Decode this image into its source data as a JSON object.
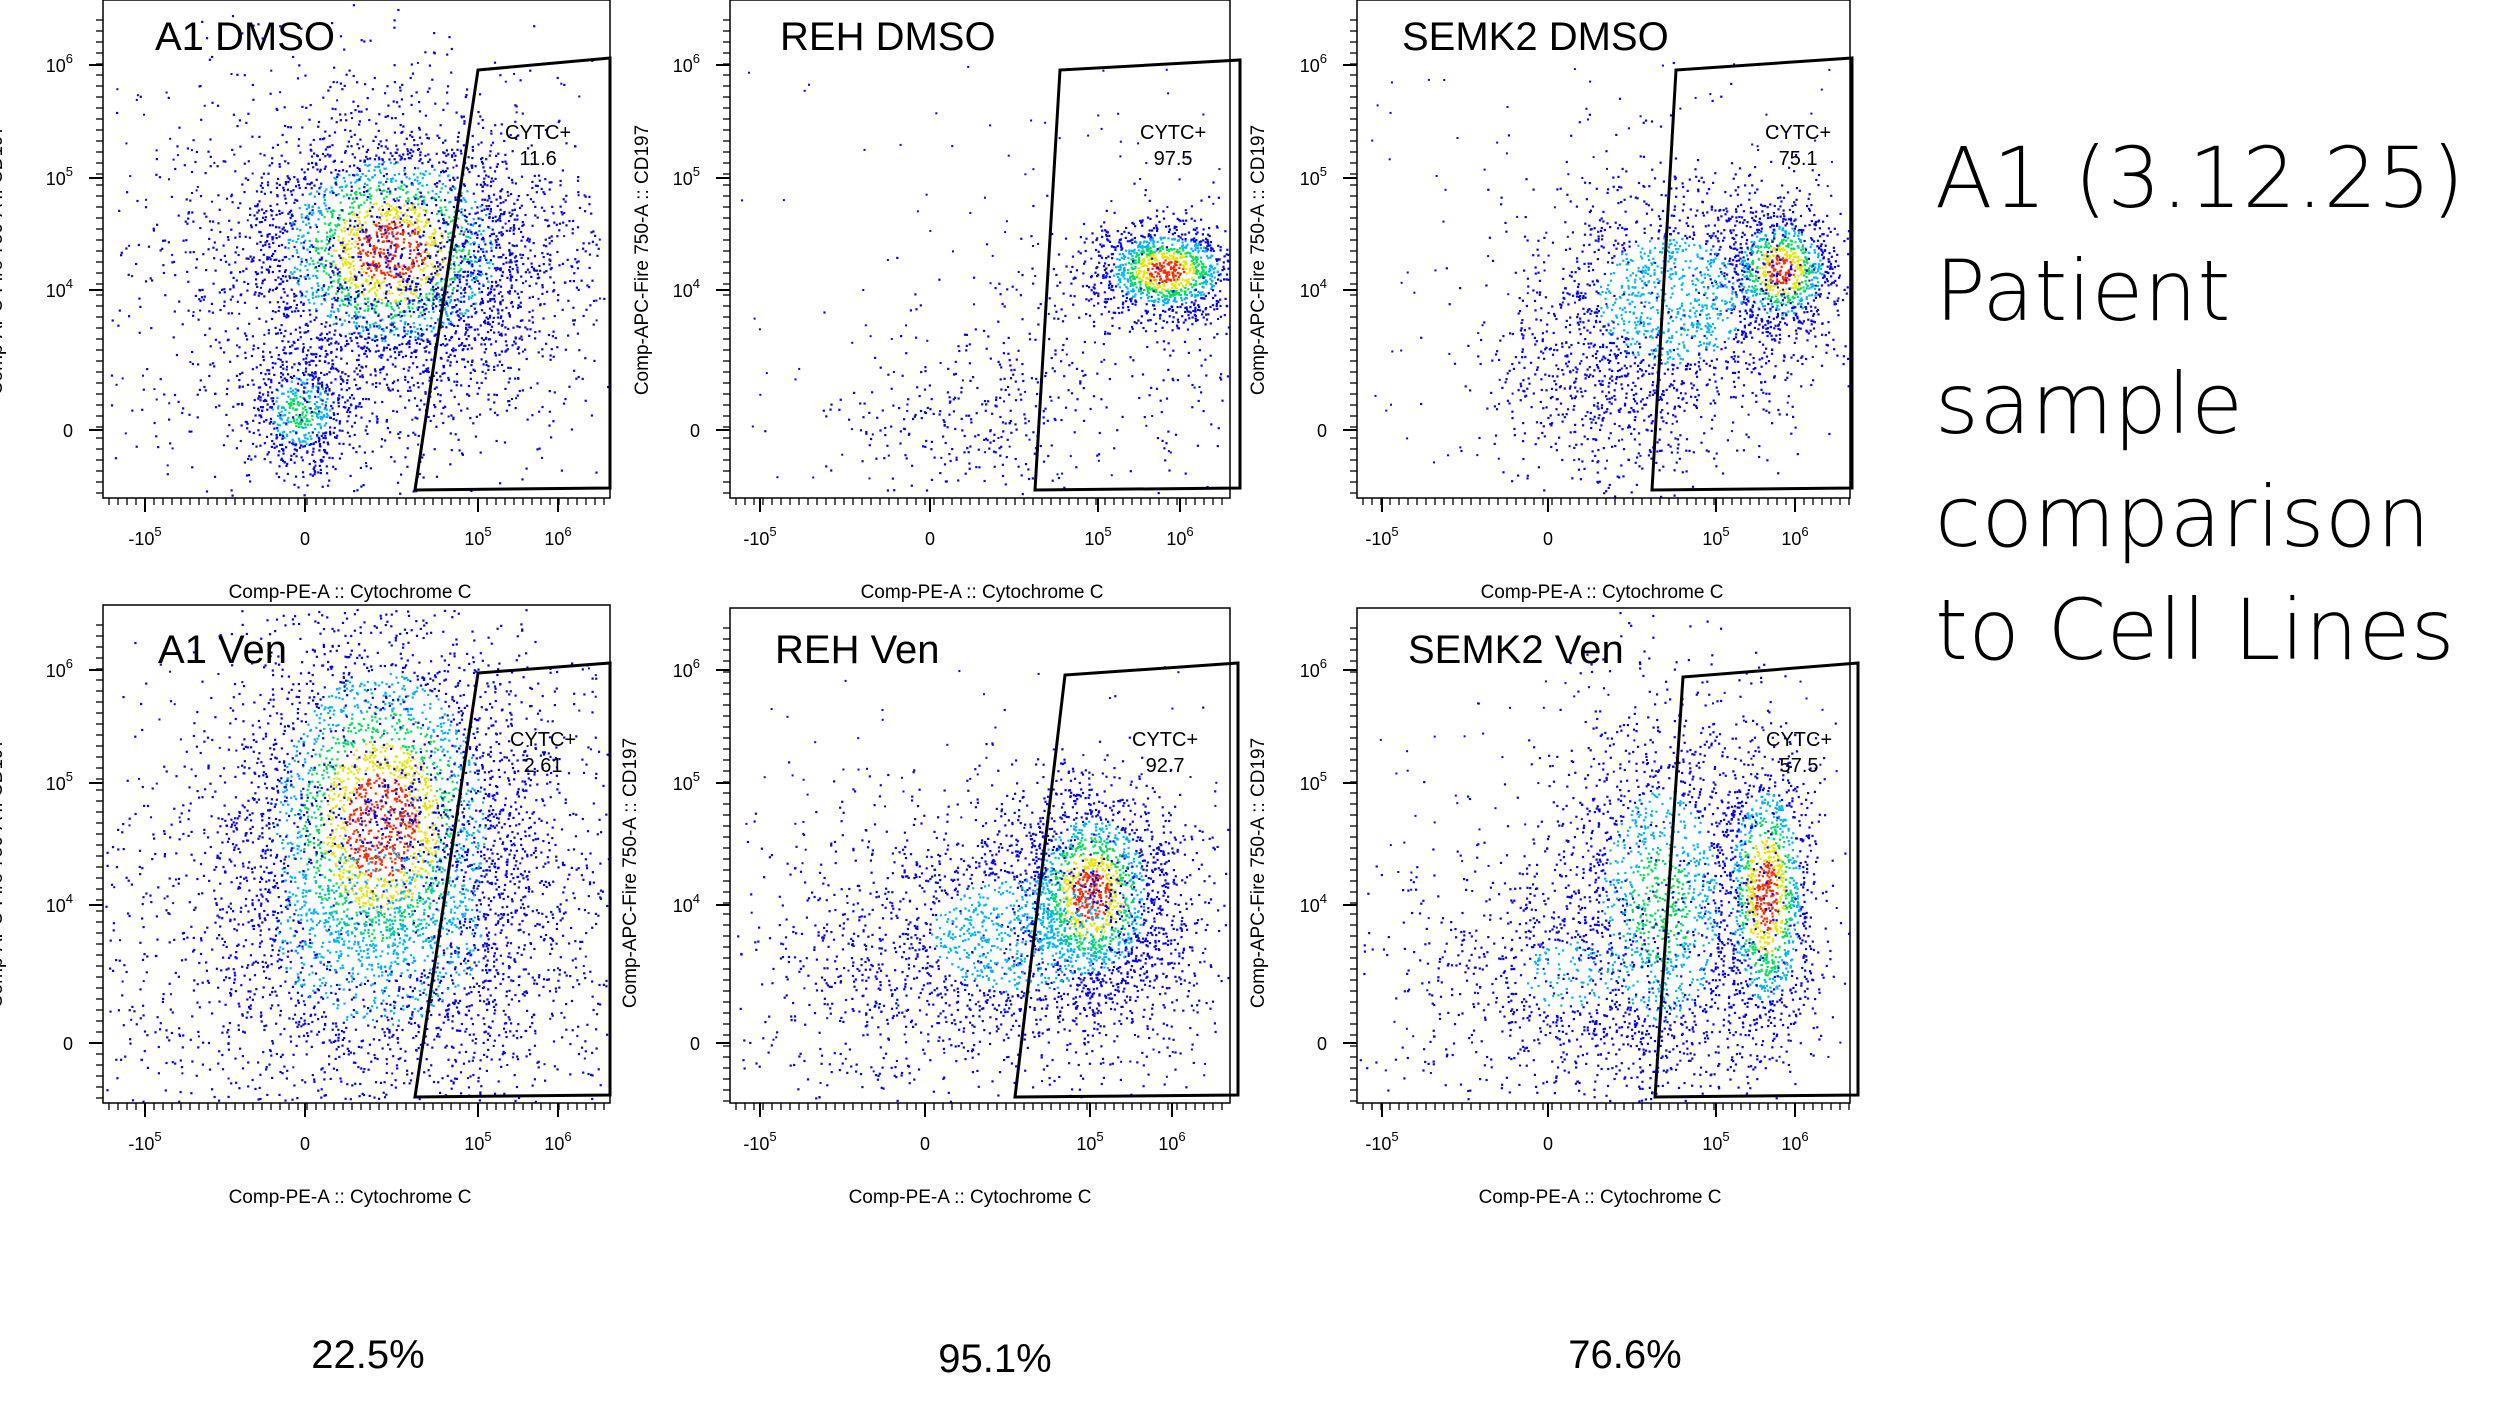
{
  "side_title": "A1 (3.12.25)\nPatient\nsample\ncomparison\nto Cell Lines",
  "summary_values": [
    "22.5%",
    "95.1%",
    "76.6%"
  ],
  "colors": {
    "density_low": "#0000ff",
    "density_mid_low": "#00b4ff",
    "density_mid": "#00e05a",
    "density_mid_high": "#e6e600",
    "density_high": "#ff2a00",
    "gate_stroke": "#000000",
    "axis": "#000000"
  },
  "chart_data": [
    {
      "type": "scatter",
      "title": "A1 DMSO",
      "xlabel": "Comp-PE-A :: Cytochrome C",
      "ylabel": "Comp-APC-Fire 750-A :: CD197",
      "x_scale": "biexponential",
      "y_scale": "biexponential",
      "x_ticks": [
        "-10^5",
        "0",
        "10^5",
        "10^6"
      ],
      "y_ticks": [
        "0",
        "10^4",
        "10^5",
        "10^6"
      ],
      "gate": {
        "name": "CYTC+",
        "percent": "11.6"
      },
      "populations": [
        {
          "x": 0.55,
          "y": 0.5,
          "density": "high"
        },
        {
          "x": -0.05,
          "y": -0.2,
          "density": "mid"
        }
      ]
    },
    {
      "type": "scatter",
      "title": "REH DMSO",
      "xlabel": "Comp-PE-A :: Cytochrome C",
      "ylabel": "Comp-APC-Fire 750-A :: CD197",
      "x_scale": "biexponential",
      "y_scale": "biexponential",
      "x_ticks": [
        "-10^5",
        "0",
        "10^5",
        "10^6"
      ],
      "y_ticks": [
        "0",
        "10^4",
        "10^5",
        "10^6"
      ],
      "gate": {
        "name": "CYTC+",
        "percent": "97.5"
      },
      "populations": [
        {
          "x": 1.5,
          "y": 4.3,
          "density": "high"
        }
      ]
    },
    {
      "type": "scatter",
      "title": "SEMK2 DMSO",
      "xlabel": "Comp-PE-A :: Cytochrome C",
      "ylabel": "Comp-APC-Fire 750-A :: CD197",
      "x_scale": "biexponential",
      "y_scale": "biexponential",
      "x_ticks": [
        "-10^5",
        "0",
        "10^5",
        "10^6"
      ],
      "y_ticks": [
        "0",
        "10^4",
        "10^5",
        "10^6"
      ],
      "gate": {
        "name": "CYTC+",
        "percent": "75.1"
      },
      "populations": [
        {
          "x": 1.55,
          "y": 4.1,
          "density": "high"
        },
        {
          "x": 0.5,
          "y": 3.9,
          "density": "mid"
        }
      ]
    },
    {
      "type": "scatter",
      "title": "A1 Ven",
      "xlabel": "Comp-PE-A :: Cytochrome C",
      "ylabel": "Comp-APC-Fire 750-A :: CD197",
      "x_scale": "biexponential",
      "y_scale": "biexponential",
      "x_ticks": [
        "-10^5",
        "0",
        "10^5",
        "10^6"
      ],
      "y_ticks": [
        "0",
        "10^4",
        "10^5",
        "10^6"
      ],
      "gate": {
        "name": "CYTC+",
        "percent": "2.61"
      },
      "populations": [
        {
          "x": 0.45,
          "y": 4.8,
          "density": "high"
        }
      ]
    },
    {
      "type": "scatter",
      "title": "REH Ven",
      "xlabel": "Comp-PE-A :: Cytochrome C",
      "ylabel": "Comp-APC-Fire 750-A :: CD197",
      "x_scale": "biexponential",
      "y_scale": "biexponential",
      "x_ticks": [
        "-10^5",
        "0",
        "10^5",
        "10^6"
      ],
      "y_ticks": [
        "0",
        "10^4",
        "10^5",
        "10^6"
      ],
      "gate": {
        "name": "CYTC+",
        "percent": "92.7"
      },
      "populations": [
        {
          "x": 1.35,
          "y": 3.9,
          "density": "high"
        }
      ]
    },
    {
      "type": "scatter",
      "title": "SEMK2 Ven",
      "xlabel": "Comp-PE-A :: Cytochrome C",
      "ylabel": "Comp-APC-Fire 750-A :: CD197",
      "x_scale": "biexponential",
      "y_scale": "biexponential",
      "x_ticks": [
        "-10^5",
        "0",
        "10^5",
        "10^6"
      ],
      "y_ticks": [
        "0",
        "10^4",
        "10^5",
        "10^6"
      ],
      "gate": {
        "name": "CYTC+",
        "percent": "57.5"
      },
      "populations": [
        {
          "x": 1.55,
          "y": 4.4,
          "density": "high"
        },
        {
          "x": 1.55,
          "y": 3.8,
          "density": "high"
        },
        {
          "x": 0.7,
          "y": 3.8,
          "density": "mid"
        }
      ]
    }
  ]
}
